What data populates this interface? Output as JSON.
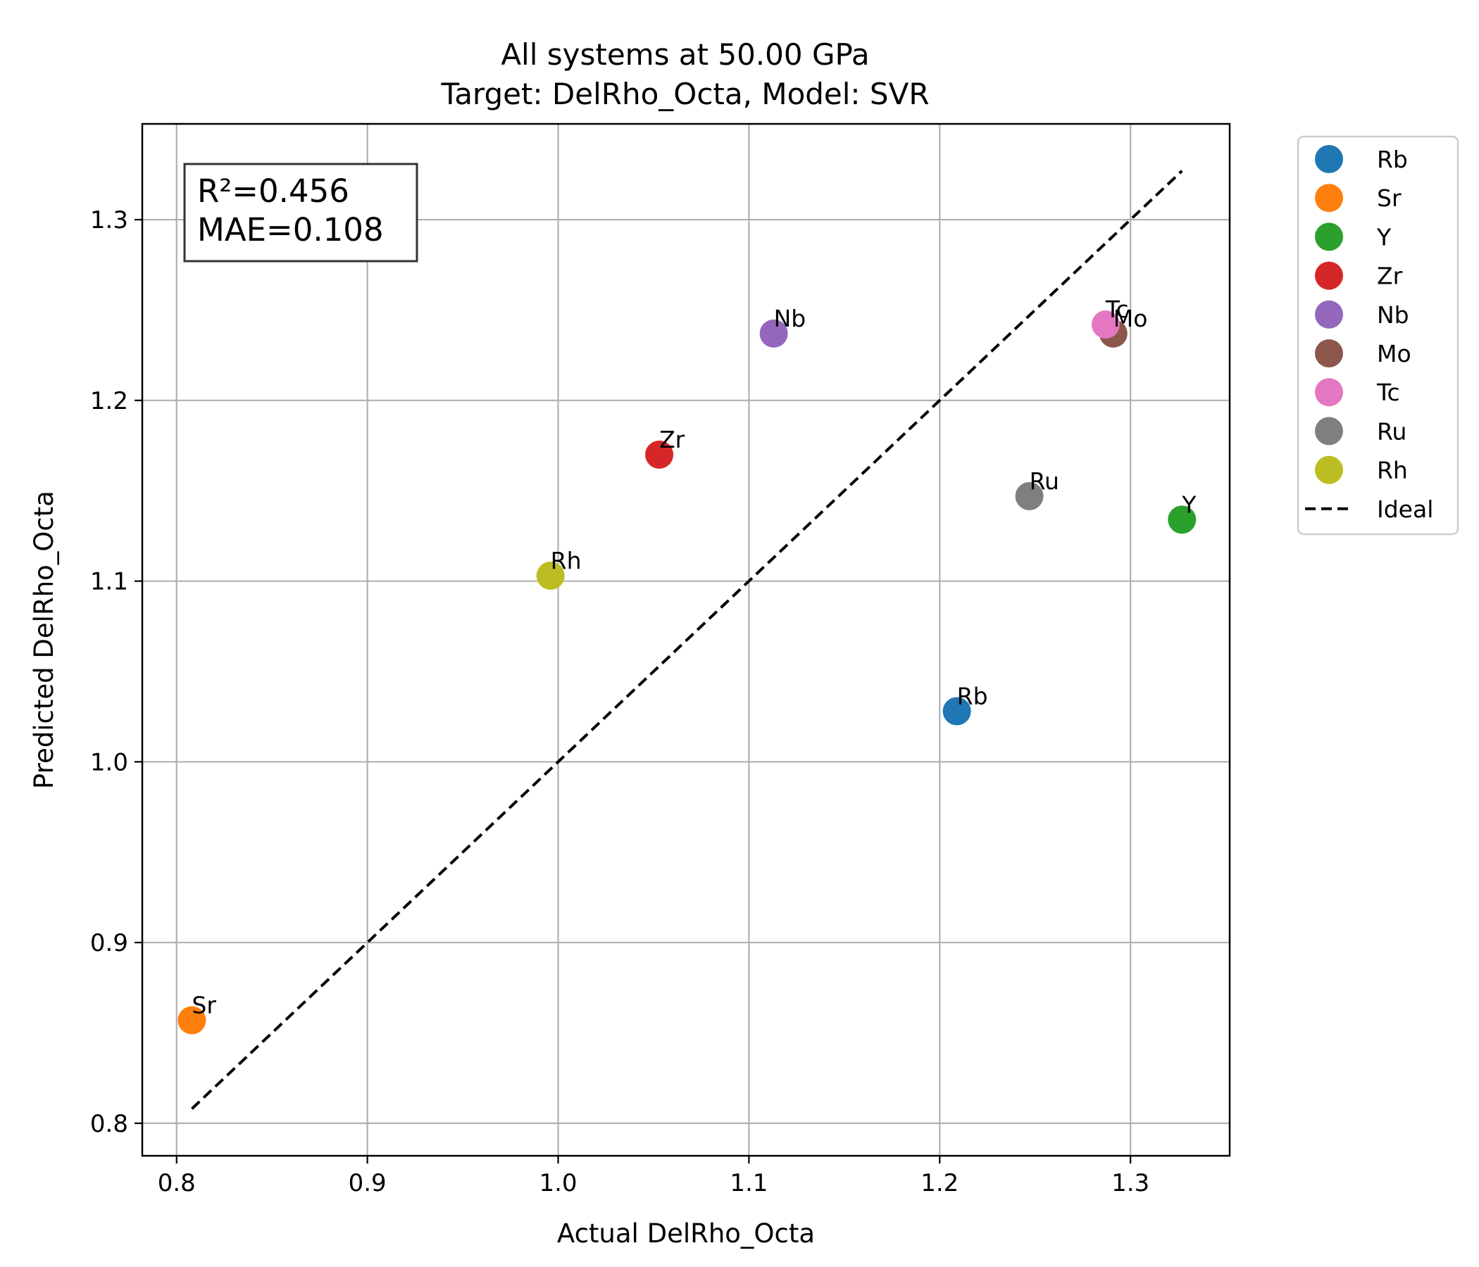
{
  "chart_data": {
    "type": "scatter",
    "title": "All systems at 50.00 GPa",
    "subtitle": "Target: DelRho_Octa, Model: SVR",
    "xlabel": "Actual DelRho_Octa",
    "ylabel": "Predicted DelRho_Octa",
    "xlim": [
      0.782,
      1.352
    ],
    "ylim": [
      0.782,
      1.353
    ],
    "xticks": [
      0.8,
      0.9,
      1.0,
      1.1,
      1.2,
      1.3
    ],
    "xtick_labels": [
      "0.8",
      "0.9",
      "1.0",
      "1.1",
      "1.2",
      "1.3"
    ],
    "yticks": [
      0.8,
      0.9,
      1.0,
      1.1,
      1.2,
      1.3
    ],
    "ytick_labels": [
      "0.8",
      "0.9",
      "1.0",
      "1.1",
      "1.2",
      "1.3"
    ],
    "grid": true,
    "legend_position": "outside-right",
    "stats_box": [
      "R²=0.456",
      "MAE=0.108"
    ],
    "ideal_line": {
      "name": "Ideal",
      "color": "#000000",
      "style": "dashed",
      "x": [
        0.808,
        1.327
      ],
      "y": [
        0.808,
        1.327
      ]
    },
    "series": [
      {
        "name": "Rb",
        "color": "#1f77b4",
        "x": 1.209,
        "y": 1.028
      },
      {
        "name": "Sr",
        "color": "#ff7f0e",
        "x": 0.808,
        "y": 0.857
      },
      {
        "name": "Y",
        "color": "#2ca02c",
        "x": 1.327,
        "y": 1.134
      },
      {
        "name": "Zr",
        "color": "#d62728",
        "x": 1.053,
        "y": 1.17
      },
      {
        "name": "Nb",
        "color": "#9467bd",
        "x": 1.113,
        "y": 1.237
      },
      {
        "name": "Mo",
        "color": "#8c564b",
        "x": 1.291,
        "y": 1.237
      },
      {
        "name": "Tc",
        "color": "#e377c2",
        "x": 1.287,
        "y": 1.242
      },
      {
        "name": "Ru",
        "color": "#7f7f7f",
        "x": 1.247,
        "y": 1.147
      },
      {
        "name": "Rh",
        "color": "#bcbd22",
        "x": 0.996,
        "y": 1.103
      }
    ]
  }
}
